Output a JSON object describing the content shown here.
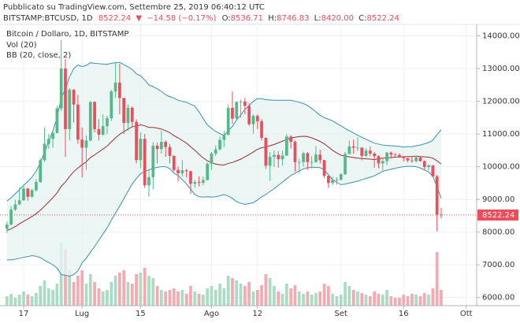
{
  "header": {
    "published": "Pubblicato su TradingView.com, Settembre 25, 2019 06:40:12 UTC",
    "symbol": "BITSTAMP:BTCUSD, 1D",
    "last": "8522.24",
    "arrow": "▼",
    "change": "−14.58 (−0.17%)",
    "ohlc": [
      {
        "label": "O:",
        "value": "8536.71"
      },
      {
        "label": "H:",
        "value": "8746.83"
      },
      {
        "label": "L:",
        "value": "8420.00"
      },
      {
        "label": "C:",
        "value": "8522.24"
      }
    ]
  },
  "chart_data": {
    "type": "candlestick",
    "title": "Bitcoin / Dollaro, 1D, BITSTAMP",
    "up_color": "#53b987",
    "down_color": "#eb4d5c",
    "open": [
      8100,
      8230,
      8690,
      8850,
      8970,
      9330,
      9080,
      9280,
      9530,
      10200,
      10700,
      10850,
      11030,
      11780,
      13000,
      11150,
      12350,
      11900,
      10830,
      10580,
      10800,
      11980,
      11150,
      10980,
      11240,
      11480,
      12300,
      12570,
      12100,
      11340,
      11800,
      11370,
      10200,
      10850,
      9430,
      9680,
      10640,
      10540,
      10760,
      10600,
      10330,
      9900,
      9800,
      9890,
      9860,
      9480,
      9530,
      9510,
      9590,
      10090,
      10400,
      10530,
      10820,
      10980,
      11800,
      11470,
      11980,
      11990,
      11860,
      11300,
      11550,
      11390,
      10880,
      10030,
      10300,
      10360,
      10230,
      10340,
      10920,
      10760,
      10140,
      10140,
      10410,
      10140,
      10140,
      10370,
      10200,
      9720,
      9500,
      9600,
      9600,
      9770,
      10390,
      10620,
      10580,
      10580,
      10330,
      10490,
      10400,
      10320,
      10100,
      10170,
      10430,
      10370,
      10360,
      10300,
      10260,
      10190,
      10170,
      10280,
      10170,
      9990,
      10040,
      9700,
      8536.71
    ],
    "high": [
      8320,
      8800,
      8990,
      9380,
      9450,
      9350,
      9320,
      9620,
      10250,
      11200,
      11000,
      11100,
      11860,
      13880,
      13300,
      12400,
      12380,
      12200,
      11200,
      10950,
      12000,
      12000,
      11450,
      11600,
      11560,
      12350,
      13200,
      13150,
      12110,
      11900,
      11850,
      11450,
      11050,
      11000,
      9900,
      10750,
      10740,
      11100,
      10800,
      10700,
      10350,
      10000,
      10200,
      9930,
      9880,
      9600,
      9700,
      9700,
      10130,
      10450,
      10650,
      10920,
      11090,
      11900,
      12300,
      12000,
      12050,
      12100,
      11950,
      11600,
      11600,
      11450,
      10900,
      10450,
      10500,
      10480,
      10490,
      11000,
      10960,
      10800,
      10240,
      10460,
      10450,
      10320,
      10630,
      10520,
      10210,
      9730,
      9690,
      9680,
      9800,
      10450,
      10800,
      10830,
      10900,
      10600,
      10560,
      10620,
      10450,
      10350,
      10270,
      10450,
      10460,
      10420,
      10400,
      10330,
      10270,
      10290,
      10320,
      10300,
      10190,
      10070,
      10050,
      9750,
      8746.83
    ],
    "low": [
      7970,
      8200,
      8640,
      8820,
      8960,
      8960,
      9050,
      9240,
      9510,
      10150,
      10550,
      10580,
      11020,
      11700,
      10300,
      10800,
      11350,
      10700,
      9670,
      9900,
      10780,
      11050,
      10800,
      10950,
      11000,
      11400,
      12100,
      11600,
      11000,
      11100,
      11200,
      10100,
      9950,
      9350,
      9080,
      9300,
      10100,
      10400,
      10300,
      10100,
      9850,
      9550,
      9700,
      9670,
      9170,
      9360,
      9400,
      9430,
      9580,
      9900,
      10330,
      10500,
      10600,
      10950,
      11300,
      11400,
      11500,
      11600,
      11250,
      11000,
      11150,
      10800,
      9930,
      9570,
      9990,
      9970,
      10040,
      10330,
      10550,
      9850,
      9800,
      10000,
      9900,
      9950,
      10120,
      10100,
      9650,
      9350,
      9430,
      9450,
      9580,
      9750,
      10370,
      10400,
      10480,
      10200,
      10290,
      10320,
      9970,
      9950,
      9900,
      10050,
      10250,
      10300,
      10270,
      10160,
      10130,
      10120,
      10130,
      10150,
      9910,
      9900,
      9680,
      8020,
      8420
    ],
    "close": [
      8230,
      8690,
      8850,
      8970,
      9330,
      9080,
      9280,
      9530,
      10200,
      10700,
      10850,
      11030,
      11780,
      13000,
      11150,
      12350,
      11900,
      10830,
      10580,
      10800,
      11980,
      11150,
      10980,
      11240,
      11480,
      12300,
      12570,
      12100,
      11340,
      11800,
      11370,
      10200,
      10850,
      9430,
      9680,
      10640,
      10540,
      10760,
      10600,
      10330,
      9900,
      9800,
      9890,
      9860,
      9480,
      9530,
      9510,
      9590,
      10090,
      10400,
      10530,
      10820,
      10980,
      11800,
      11470,
      11980,
      11990,
      11860,
      11300,
      11550,
      11390,
      10880,
      10030,
      10300,
      10360,
      10230,
      10340,
      10920,
      10760,
      10140,
      10140,
      10410,
      10140,
      10140,
      10370,
      10200,
      9720,
      9500,
      9600,
      9600,
      9770,
      10390,
      10620,
      10580,
      10580,
      10330,
      10490,
      10400,
      10320,
      10100,
      10170,
      10430,
      10370,
      10360,
      10300,
      10260,
      10190,
      10170,
      10280,
      10170,
      9990,
      10040,
      9700,
      8536.82,
      8522.24
    ],
    "ylim": [
      5750,
      14350
    ],
    "yticks": [
      {
        "value": 6000,
        "label": "6000.00"
      },
      {
        "value": 7000,
        "label": "7000.00"
      },
      {
        "value": 8000,
        "label": "8000.00"
      },
      {
        "value": 9000,
        "label": "9000.00"
      },
      {
        "value": 10000,
        "label": "10000.00"
      },
      {
        "value": 11000,
        "label": "11000.00"
      },
      {
        "value": 12000,
        "label": "12000.00"
      },
      {
        "value": 13000,
        "label": "13000.00"
      },
      {
        "value": 14000,
        "label": "14000.00"
      }
    ],
    "xlim": [
      -1.66,
      112.5
    ],
    "xticks": [
      {
        "value": 4,
        "label": "17"
      },
      {
        "value": 18,
        "label": "Lug"
      },
      {
        "value": 32,
        "label": "15"
      },
      {
        "value": 49,
        "label": "Ago"
      },
      {
        "value": 60,
        "label": "12"
      },
      {
        "value": 80,
        "label": "Set"
      },
      {
        "value": 95,
        "label": "16"
      },
      {
        "value": 110,
        "label": "Ott"
      }
    ],
    "grid": true,
    "volume": {
      "name": "Vol (20)",
      "up_color": "#a9dcc3",
      "down_color": "#f5a9b1",
      "ylim": [
        0,
        100
      ],
      "values": [
        12,
        15,
        10,
        14,
        18,
        14,
        12,
        16,
        25,
        32,
        22,
        20,
        28,
        80,
        72,
        45,
        30,
        38,
        45,
        28,
        40,
        30,
        22,
        18,
        20,
        30,
        38,
        42,
        45,
        30,
        28,
        40,
        42,
        48,
        38,
        35,
        25,
        20,
        18,
        20,
        22,
        18,
        20,
        15,
        25,
        18,
        15,
        14,
        22,
        25,
        20,
        28,
        22,
        38,
        35,
        32,
        28,
        25,
        30,
        18,
        20,
        26,
        40,
        35,
        25,
        18,
        15,
        28,
        22,
        26,
        18,
        15,
        18,
        14,
        16,
        18,
        28,
        25,
        15,
        12,
        14,
        30,
        25,
        20,
        18,
        16,
        14,
        12,
        18,
        15,
        14,
        20,
        12,
        10,
        10,
        14,
        12,
        15,
        14,
        12,
        16,
        14,
        22,
        68,
        20
      ]
    },
    "bollinger": {
      "name": "BB (20, close, 2)",
      "band_color": "#3a8fb0",
      "middle_color": "#9b2b2b",
      "fill": "#e6f4f3",
      "upper": [
        8950,
        9050,
        9170,
        9300,
        9430,
        9550,
        9680,
        9860,
        10120,
        10440,
        10770,
        11100,
        11500,
        12100,
        12380,
        12750,
        13000,
        13110,
        13060,
        13100,
        13180,
        13160,
        13150,
        13140,
        13130,
        13160,
        13180,
        13190,
        13120,
        13050,
        12970,
        12840,
        12780,
        12650,
        12500,
        12450,
        12380,
        12300,
        12200,
        12140,
        12100,
        12030,
        12000,
        11970,
        11910,
        11850,
        11680,
        11470,
        11280,
        11170,
        11080,
        11010,
        10950,
        11100,
        11230,
        11430,
        11580,
        11750,
        11870,
        12000,
        12080,
        12080,
        12050,
        12040,
        12030,
        12030,
        12030,
        12030,
        12030,
        12000,
        11970,
        11930,
        11870,
        11780,
        11680,
        11570,
        11500,
        11450,
        11400,
        11320,
        11250,
        11170,
        11100,
        11030,
        10960,
        10900,
        10840,
        10780,
        10720,
        10690,
        10660,
        10650,
        10640,
        10630,
        10620,
        10600,
        10610,
        10610,
        10640,
        10660,
        10700,
        10740,
        10810,
        10980,
        11130
      ],
      "middle": [
        8050,
        8100,
        8170,
        8250,
        8330,
        8400,
        8480,
        8560,
        8670,
        8790,
        8920,
        9050,
        9200,
        9400,
        9530,
        9700,
        9850,
        9960,
        10060,
        10150,
        10280,
        10360,
        10450,
        10540,
        10630,
        10760,
        10880,
        10990,
        11070,
        11150,
        11220,
        11240,
        11280,
        11250,
        11200,
        11200,
        11180,
        11150,
        11100,
        11040,
        10950,
        10880,
        10800,
        10720,
        10610,
        10500,
        10380,
        10270,
        10180,
        10120,
        10080,
        10060,
        10050,
        10100,
        10130,
        10180,
        10230,
        10300,
        10370,
        10450,
        10530,
        10580,
        10600,
        10640,
        10680,
        10730,
        10780,
        10830,
        10880,
        10900,
        10920,
        10930,
        10920,
        10880,
        10830,
        10770,
        10700,
        10600,
        10500,
        10420,
        10350,
        10320,
        10300,
        10280,
        10260,
        10250,
        10240,
        10230,
        10220,
        10240,
        10260,
        10270,
        10280,
        10290,
        10300,
        10300,
        10310,
        10310,
        10320,
        10310,
        10300,
        10290,
        10260,
        10180,
        10080
      ],
      "lower": [
        7150,
        7150,
        7170,
        7200,
        7230,
        7250,
        7280,
        7260,
        7220,
        7140,
        7070,
        7000,
        6900,
        6700,
        6680,
        6650,
        6700,
        6810,
        7060,
        7200,
        7380,
        7560,
        7750,
        7940,
        8130,
        8360,
        8580,
        8790,
        9020,
        9250,
        9470,
        9640,
        9780,
        9850,
        9900,
        9950,
        9980,
        10000,
        10000,
        9940,
        9800,
        9730,
        9600,
        9470,
        9310,
        9150,
        9080,
        9070,
        9080,
        9070,
        9080,
        9110,
        9150,
        9100,
        9030,
        8930,
        8880,
        8850,
        8870,
        8900,
        8980,
        9080,
        9150,
        9240,
        9330,
        9430,
        9530,
        9630,
        9730,
        9800,
        9870,
        9930,
        9970,
        9980,
        9980,
        9970,
        9900,
        9750,
        9600,
        9520,
        9450,
        9470,
        9500,
        9530,
        9560,
        9600,
        9640,
        9680,
        9720,
        9790,
        9860,
        9890,
        9920,
        9950,
        9980,
        10000,
        10010,
        10010,
        10000,
        9960,
        9900,
        9840,
        9710,
        9380,
        9030
      ]
    },
    "last_price": {
      "value": 8522.24,
      "label": "8522.24",
      "color": "#eb4d5c"
    }
  }
}
